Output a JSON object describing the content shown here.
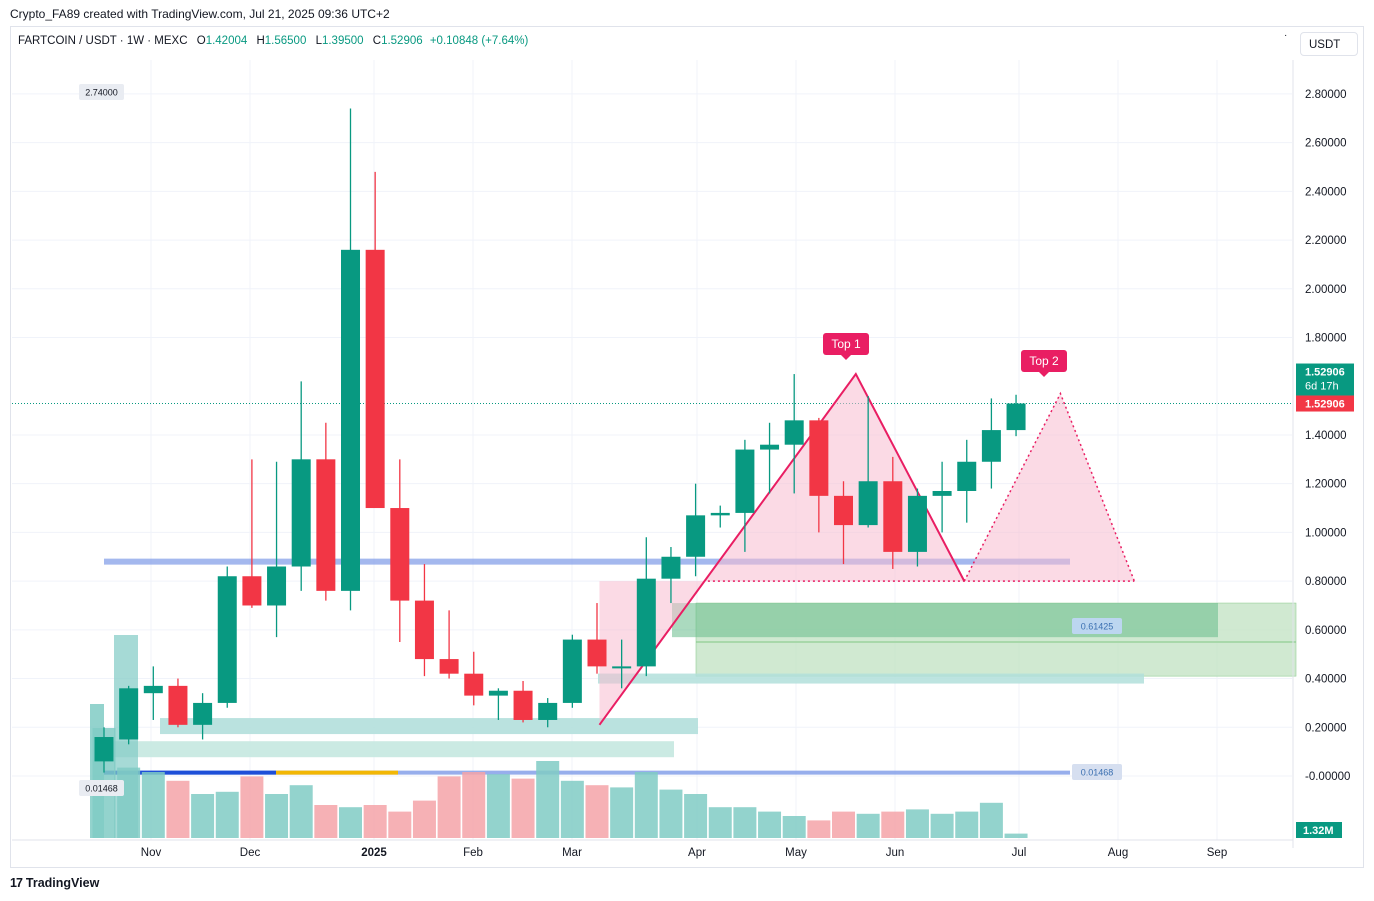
{
  "header": {
    "created_by": "Crypto_FA89 created with TradingView.com, Jul 21, 2025 09:36 UTC+2"
  },
  "legend": {
    "symbol": "FARTCOIN / USDT · 1W · MEXC",
    "open_label": "O",
    "open": "1.42004",
    "high_label": "H",
    "high": "1.56500",
    "low_label": "L",
    "low": "1.39500",
    "close_label": "C",
    "close": "1.52906",
    "change": "+0.10848 (+7.64%)"
  },
  "toolbar": {
    "currency": "USDT",
    "menu_dots": "·"
  },
  "footer": {
    "brand": "TradingView",
    "brand_mark": "17"
  },
  "colors": {
    "up": "#089981",
    "down": "#f23645",
    "pattern_fill": "#f8bbd0",
    "pattern_line": "#e91e63",
    "zone": "#a5d6a7",
    "level_line": "#7e9be8"
  },
  "chart_data": {
    "type": "candlestick",
    "timeframe": "1W",
    "y_axis": {
      "ticks": [
        "2.80000",
        "2.60000",
        "2.40000",
        "2.20000",
        "2.00000",
        "1.80000",
        "1.40000",
        "1.20000",
        "1.00000",
        "0.80000",
        "0.60000",
        "0.40000",
        "0.20000",
        "-0.00000"
      ],
      "ylim": [
        -0.2,
        2.95
      ]
    },
    "x_axis": {
      "ticks": [
        "Nov",
        "Dec",
        "2025",
        "Feb",
        "Mar",
        "Apr",
        "May",
        "Jun",
        "Jul",
        "Aug",
        "Sep"
      ]
    },
    "candles": [
      {
        "o": 0.06,
        "h": 0.2,
        "l": 0.014,
        "c": 0.16
      },
      {
        "o": 0.15,
        "h": 0.37,
        "l": 0.13,
        "c": 0.36
      },
      {
        "o": 0.34,
        "h": 0.45,
        "l": 0.23,
        "c": 0.37
      },
      {
        "o": 0.37,
        "h": 0.4,
        "l": 0.2,
        "c": 0.21
      },
      {
        "o": 0.21,
        "h": 0.34,
        "l": 0.15,
        "c": 0.3
      },
      {
        "o": 0.3,
        "h": 0.86,
        "l": 0.28,
        "c": 0.82
      },
      {
        "o": 0.82,
        "h": 1.3,
        "l": 0.69,
        "c": 0.7
      },
      {
        "o": 0.7,
        "h": 1.29,
        "l": 0.57,
        "c": 0.86
      },
      {
        "o": 0.86,
        "h": 1.62,
        "l": 0.76,
        "c": 1.3
      },
      {
        "o": 1.3,
        "h": 1.45,
        "l": 0.72,
        "c": 0.76
      },
      {
        "o": 0.76,
        "h": 2.74,
        "l": 0.68,
        "c": 2.16
      },
      {
        "o": 2.16,
        "h": 2.48,
        "l": 1.1,
        "c": 1.1
      },
      {
        "o": 1.1,
        "h": 1.3,
        "l": 0.55,
        "c": 0.72
      },
      {
        "o": 0.72,
        "h": 0.87,
        "l": 0.41,
        "c": 0.48
      },
      {
        "o": 0.48,
        "h": 0.68,
        "l": 0.4,
        "c": 0.42
      },
      {
        "o": 0.42,
        "h": 0.51,
        "l": 0.29,
        "c": 0.33
      },
      {
        "o": 0.33,
        "h": 0.36,
        "l": 0.23,
        "c": 0.35
      },
      {
        "o": 0.35,
        "h": 0.39,
        "l": 0.22,
        "c": 0.23
      },
      {
        "o": 0.23,
        "h": 0.32,
        "l": 0.2,
        "c": 0.3
      },
      {
        "o": 0.3,
        "h": 0.58,
        "l": 0.28,
        "c": 0.56
      },
      {
        "o": 0.56,
        "h": 0.71,
        "l": 0.42,
        "c": 0.45
      },
      {
        "o": 0.45,
        "h": 0.56,
        "l": 0.36,
        "c": 0.45
      },
      {
        "o": 0.45,
        "h": 0.98,
        "l": 0.41,
        "c": 0.81
      },
      {
        "o": 0.81,
        "h": 0.94,
        "l": 0.71,
        "c": 0.9
      },
      {
        "o": 0.9,
        "h": 1.2,
        "l": 0.82,
        "c": 1.07
      },
      {
        "o": 1.07,
        "h": 1.11,
        "l": 1.02,
        "c": 1.08
      },
      {
        "o": 1.08,
        "h": 1.38,
        "l": 0.92,
        "c": 1.34
      },
      {
        "o": 1.34,
        "h": 1.45,
        "l": 1.16,
        "c": 1.36
      },
      {
        "o": 1.36,
        "h": 1.65,
        "l": 1.16,
        "c": 1.46
      },
      {
        "o": 1.46,
        "h": 1.47,
        "l": 1.0,
        "c": 1.15
      },
      {
        "o": 1.15,
        "h": 1.21,
        "l": 0.87,
        "c": 1.03
      },
      {
        "o": 1.03,
        "h": 1.56,
        "l": 1.02,
        "c": 1.21
      },
      {
        "o": 1.21,
        "h": 1.31,
        "l": 0.85,
        "c": 0.92
      },
      {
        "o": 0.92,
        "h": 1.18,
        "l": 0.86,
        "c": 1.15
      },
      {
        "o": 1.15,
        "h": 1.29,
        "l": 1.0,
        "c": 1.17
      },
      {
        "o": 1.17,
        "h": 1.38,
        "l": 1.04,
        "c": 1.29
      },
      {
        "o": 1.29,
        "h": 1.55,
        "l": 1.18,
        "c": 1.42
      },
      {
        "o": 1.42,
        "h": 1.565,
        "l": 1.395,
        "c": 1.52906
      }
    ],
    "volume": [
      50,
      32,
      30,
      26,
      20,
      21,
      28,
      20,
      24,
      15,
      14,
      15,
      12,
      17,
      28,
      30,
      29,
      27,
      35,
      26,
      24,
      23,
      30,
      22,
      20,
      14,
      14,
      12,
      10,
      8,
      12,
      11,
      12,
      13,
      11,
      12,
      16,
      2
    ],
    "annotations": [
      {
        "text": "Top 1",
        "type": "label",
        "color": "#e91e63"
      },
      {
        "text": "Top 2",
        "type": "label",
        "color": "#e91e63"
      }
    ],
    "price_labels": {
      "high_marker": "2.74000",
      "low_marker": "0.01468",
      "last_price": "1.52906",
      "countdown": "6d 17h",
      "zone_mid": "0.61425",
      "zone_low": "0.01468",
      "volume_last": "1.32M"
    },
    "levels": [
      0.88,
      0.014
    ],
    "demand_zones": [
      [
        0.42,
        0.71
      ],
      [
        0.57,
        0.71
      ]
    ],
    "double_top": {
      "peaks": [
        1.65,
        1.56
      ],
      "neckline": 0.8
    }
  }
}
